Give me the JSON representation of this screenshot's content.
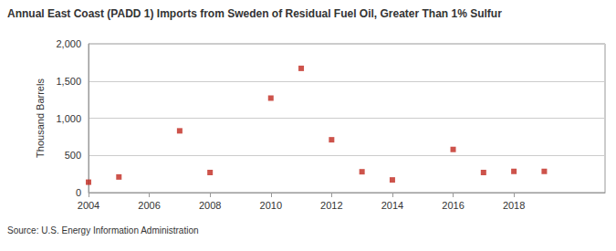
{
  "chart_data": {
    "type": "scatter",
    "title": "Annual East Coast (PADD 1) Imports from Sweden of Residual Fuel Oil, Greater Than 1% Sulfur",
    "y_label": "Thousand Barrels",
    "annotations": [
      "Source: U.S. Energy Information Administration"
    ],
    "x": [
      2004,
      2005,
      2007,
      2008,
      2010,
      2011,
      2012,
      2013,
      2014,
      2016,
      2017,
      2018,
      2019
    ],
    "values": [
      140,
      210,
      830,
      270,
      1270,
      1670,
      710,
      280,
      170,
      580,
      270,
      285,
      285
    ],
    "color": "#c0281e",
    "marker": "square",
    "xlim": [
      2004,
      2021
    ],
    "xticks": [
      2004,
      2006,
      2008,
      2010,
      2012,
      2014,
      2016,
      2018
    ],
    "ylim": [
      0,
      2000
    ],
    "yticks": [
      0,
      500,
      {
        "value": 1000,
        "label": "1,000"
      },
      {
        "value": 1500,
        "label": "1,500"
      },
      {
        "value": 2000,
        "label": "2,000"
      }
    ],
    "grid": true
  }
}
